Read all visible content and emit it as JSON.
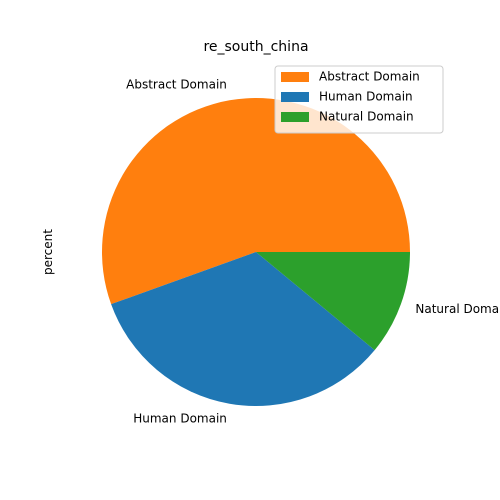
{
  "chart_data": {
    "type": "pie",
    "title": "re_south_china",
    "ylabel": "percent",
    "legend_position": "top-right",
    "start_angle_deg": 0,
    "direction": "counterclockwise",
    "slices": [
      {
        "label": "Abstract Domain",
        "value": 55.5,
        "color": "#ff7f0e"
      },
      {
        "label": "Human Domain",
        "value": 33.5,
        "color": "#1f77b4"
      },
      {
        "label": "Natural Domain",
        "value": 11.0,
        "color": "#2ca02c"
      }
    ]
  }
}
